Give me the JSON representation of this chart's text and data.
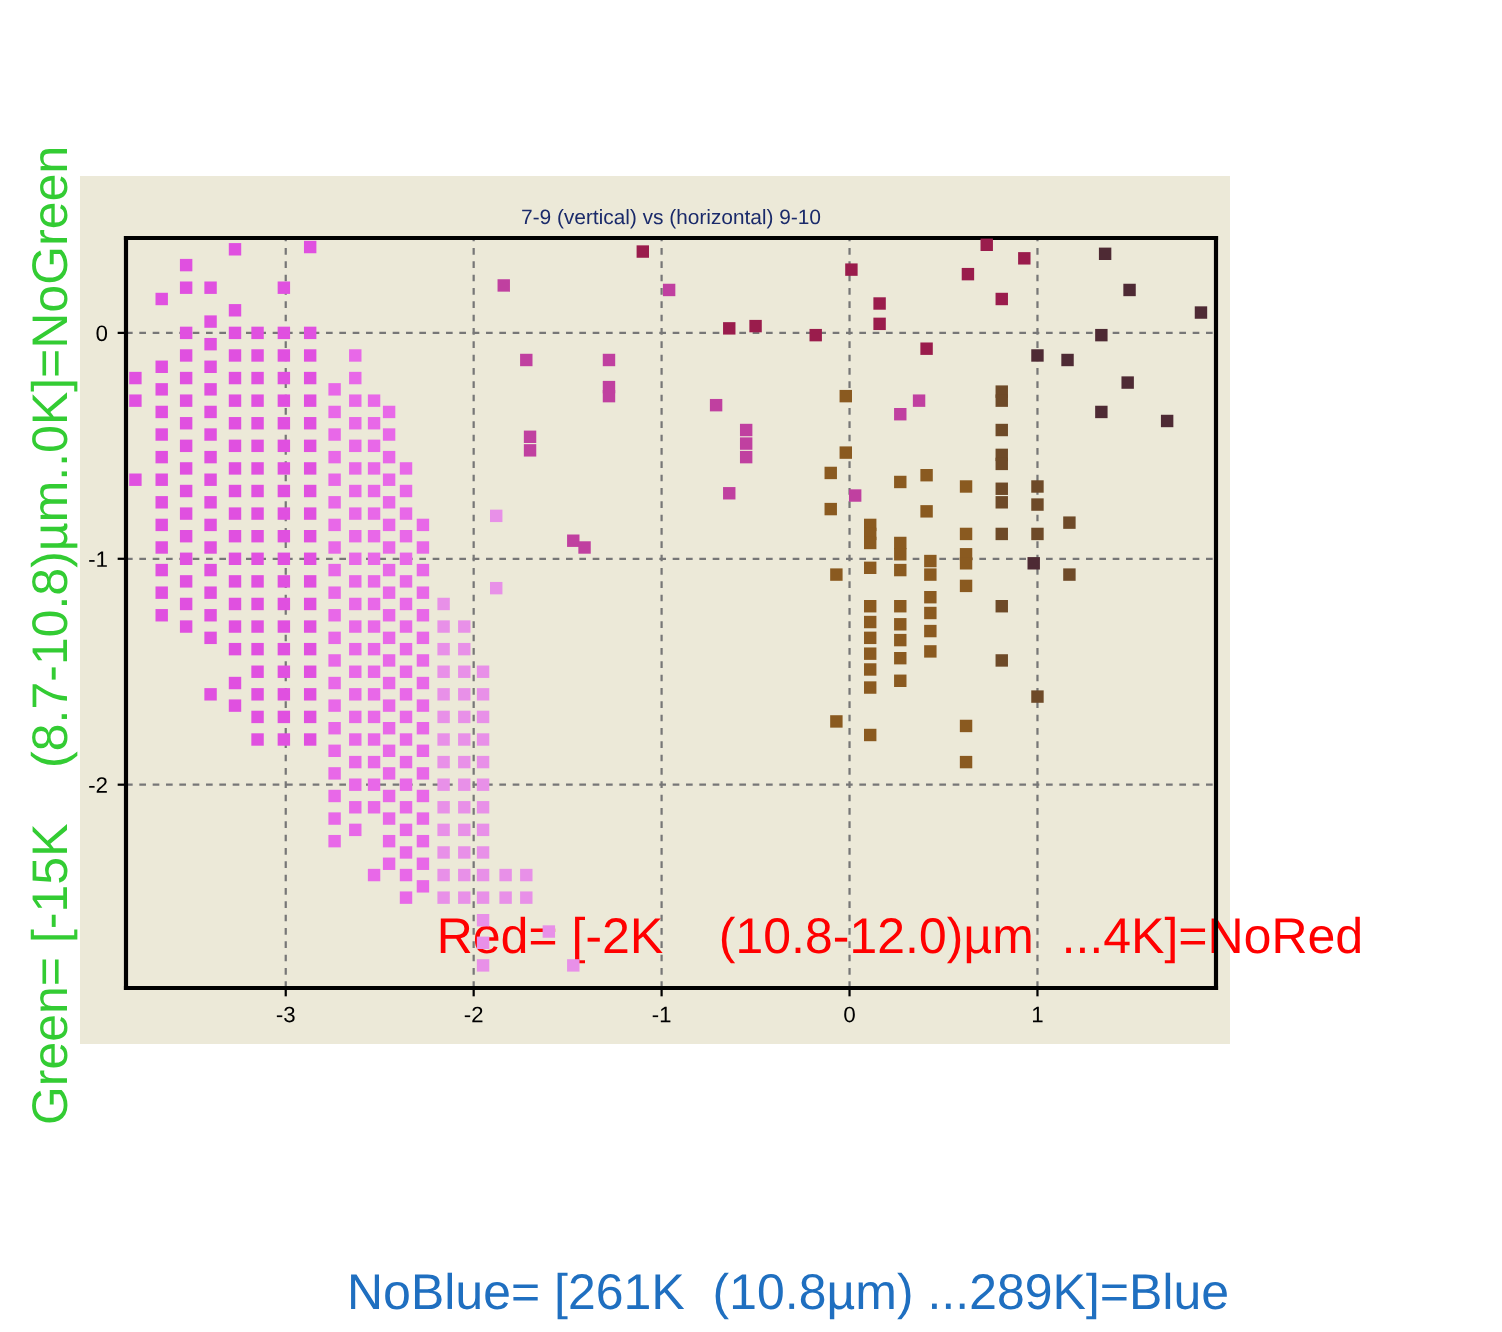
{
  "chart_data": {
    "type": "scatter",
    "title": "7-9 (vertical) vs (horizontal) 9-10",
    "xlabel": "Red= [-2K    (10.8-12.0)µm  ...4K]=NoRed",
    "ylabel": "Green= [-15K    (8.7-10.8)µm..0K]=NoGreen",
    "annotations": [
      "NoBlue= [261K  (10.8µm) ...289K]=Blue"
    ],
    "xlim": [
      -3.85,
      1.95
    ],
    "ylim": [
      -2.9,
      0.42
    ],
    "xticks": [
      -3,
      -2,
      -1,
      0,
      1
    ],
    "yticks": [
      -2,
      -1,
      0
    ],
    "grid": true,
    "marker": "square",
    "series": [
      {
        "color": "#e050e0",
        "x": [
          -3.8,
          -3.8,
          -3.8
        ],
        "values": [
          -0.2,
          -0.3,
          -0.65
        ]
      },
      {
        "color": "#e050e0",
        "x": [
          -3.66,
          -3.66,
          -3.66,
          -3.66,
          -3.66,
          -3.66,
          -3.66,
          -3.66,
          -3.66,
          -3.66,
          -3.66,
          -3.66,
          -3.66
        ],
        "values": [
          0.15,
          -0.15,
          -0.25,
          -0.35,
          -0.45,
          -0.55,
          -0.65,
          -0.75,
          -0.85,
          -0.95,
          -1.05,
          -1.15,
          -1.25
        ]
      },
      {
        "color": "#e050e0",
        "x": [
          -3.53,
          -3.53,
          -3.53,
          -3.53,
          -3.53,
          -3.53,
          -3.53,
          -3.53,
          -3.53,
          -3.53,
          -3.53,
          -3.53,
          -3.53,
          -3.53,
          -3.53,
          -3.53
        ],
        "values": [
          0.3,
          0.2,
          0.0,
          -0.1,
          -0.2,
          -0.3,
          -0.4,
          -0.5,
          -0.6,
          -0.7,
          -0.8,
          -0.9,
          -1.0,
          -1.1,
          -1.2,
          -1.3
        ]
      },
      {
        "color": "#e050e0",
        "x": [
          -3.4,
          -3.4,
          -3.4,
          -3.4,
          -3.4,
          -3.4,
          -3.4,
          -3.4,
          -3.4,
          -3.4,
          -3.4,
          -3.4,
          -3.4,
          -3.4,
          -3.4,
          -3.4,
          -3.4
        ],
        "values": [
          0.2,
          0.05,
          -0.05,
          -0.15,
          -0.25,
          -0.35,
          -0.45,
          -0.55,
          -0.65,
          -0.75,
          -0.85,
          -0.95,
          -1.05,
          -1.15,
          -1.25,
          -1.35,
          -1.6
        ]
      },
      {
        "color": "#e050e0",
        "x": [
          -3.27,
          -3.27,
          -3.27,
          -3.27,
          -3.27,
          -3.27,
          -3.27,
          -3.27,
          -3.27,
          -3.27,
          -3.27,
          -3.27,
          -3.27,
          -3.27,
          -3.27,
          -3.27,
          -3.27,
          -3.27,
          -3.27
        ],
        "values": [
          0.37,
          0.1,
          0.0,
          -0.1,
          -0.2,
          -0.3,
          -0.4,
          -0.5,
          -0.6,
          -0.7,
          -0.8,
          -0.9,
          -1.0,
          -1.1,
          -1.2,
          -1.3,
          -1.4,
          -1.55,
          -1.65
        ]
      },
      {
        "color": "#e050e0",
        "x": [
          -3.15,
          -3.15,
          -3.15,
          -3.15,
          -3.15,
          -3.15,
          -3.15,
          -3.15,
          -3.15,
          -3.15,
          -3.15,
          -3.15,
          -3.15,
          -3.15,
          -3.15,
          -3.15,
          -3.15,
          -3.15,
          -3.15
        ],
        "values": [
          0.0,
          -0.1,
          -0.2,
          -0.3,
          -0.4,
          -0.5,
          -0.6,
          -0.7,
          -0.8,
          -0.9,
          -1.0,
          -1.1,
          -1.2,
          -1.3,
          -1.4,
          -1.5,
          -1.6,
          -1.7,
          -1.8
        ]
      },
      {
        "color": "#e050e0",
        "x": [
          -3.01,
          -3.01,
          -3.01,
          -3.01,
          -3.01,
          -3.01,
          -3.01,
          -3.01,
          -3.01,
          -3.01,
          -3.01,
          -3.01,
          -3.01,
          -3.01,
          -3.01,
          -3.01,
          -3.01,
          -3.01,
          -3.01,
          -3.01
        ],
        "values": [
          0.2,
          0.0,
          -0.1,
          -0.2,
          -0.3,
          -0.4,
          -0.5,
          -0.6,
          -0.7,
          -0.8,
          -0.9,
          -1.0,
          -1.1,
          -1.2,
          -1.3,
          -1.4,
          -1.5,
          -1.6,
          -1.7,
          -1.8
        ]
      },
      {
        "color": "#e050e0",
        "x": [
          -2.87,
          -2.87,
          -2.87,
          -2.87,
          -2.87,
          -2.87,
          -2.87,
          -2.87,
          -2.87,
          -2.87,
          -2.87,
          -2.87,
          -2.87,
          -2.87,
          -2.87,
          -2.87,
          -2.87,
          -2.87,
          -2.87,
          -2.87
        ],
        "values": [
          0.38,
          0.0,
          -0.1,
          -0.2,
          -0.3,
          -0.4,
          -0.5,
          -0.6,
          -0.7,
          -0.8,
          -0.9,
          -1.0,
          -1.1,
          -1.2,
          -1.3,
          -1.4,
          -1.5,
          -1.6,
          -1.7,
          -1.8
        ]
      },
      {
        "color": "#e868e8",
        "x": [
          -2.74,
          -2.74,
          -2.74,
          -2.74,
          -2.74,
          -2.74,
          -2.74,
          -2.74,
          -2.74,
          -2.74,
          -2.74,
          -2.74,
          -2.74,
          -2.74,
          -2.74,
          -2.74,
          -2.74,
          -2.74,
          -2.74,
          -2.74,
          -2.74
        ],
        "values": [
          -0.25,
          -0.35,
          -0.45,
          -0.55,
          -0.65,
          -0.75,
          -0.85,
          -0.95,
          -1.05,
          -1.15,
          -1.25,
          -1.35,
          -1.45,
          -1.55,
          -1.65,
          -1.75,
          -1.85,
          -1.95,
          -2.05,
          -2.15,
          -2.25
        ]
      },
      {
        "color": "#e868e8",
        "x": [
          -2.63,
          -2.63,
          -2.63,
          -2.63,
          -2.63,
          -2.63,
          -2.63,
          -2.63,
          -2.63,
          -2.63,
          -2.63,
          -2.63,
          -2.63,
          -2.63,
          -2.63,
          -2.63,
          -2.63,
          -2.63,
          -2.63,
          -2.63,
          -2.63,
          -2.63
        ],
        "values": [
          -0.1,
          -0.2,
          -0.3,
          -0.4,
          -0.5,
          -0.6,
          -0.7,
          -0.8,
          -0.9,
          -1.0,
          -1.1,
          -1.2,
          -1.3,
          -1.4,
          -1.5,
          -1.6,
          -1.7,
          -1.8,
          -1.9,
          -2.0,
          -2.1,
          -2.2
        ]
      },
      {
        "color": "#e868e8",
        "x": [
          -2.53,
          -2.53,
          -2.53,
          -2.53,
          -2.53,
          -2.53,
          -2.53,
          -2.53,
          -2.53,
          -2.53,
          -2.53,
          -2.53,
          -2.53,
          -2.53,
          -2.53,
          -2.53,
          -2.53,
          -2.53,
          -2.53,
          -2.53
        ],
        "values": [
          -0.3,
          -0.4,
          -0.5,
          -0.6,
          -0.7,
          -0.8,
          -0.9,
          -1.0,
          -1.1,
          -1.2,
          -1.3,
          -1.4,
          -1.5,
          -1.6,
          -1.7,
          -1.8,
          -1.9,
          -2.0,
          -2.1,
          -2.4
        ]
      },
      {
        "color": "#e868e8",
        "x": [
          -2.45,
          -2.45,
          -2.45,
          -2.45,
          -2.45,
          -2.45,
          -2.45,
          -2.45,
          -2.45,
          -2.45,
          -2.45,
          -2.45,
          -2.45,
          -2.45,
          -2.45,
          -2.45,
          -2.45,
          -2.45,
          -2.45,
          -2.45,
          -2.45
        ],
        "values": [
          -0.35,
          -0.45,
          -0.55,
          -0.65,
          -0.75,
          -0.85,
          -0.95,
          -1.05,
          -1.15,
          -1.25,
          -1.35,
          -1.45,
          -1.55,
          -1.65,
          -1.75,
          -1.85,
          -1.95,
          -2.05,
          -2.15,
          -2.25,
          -2.35
        ]
      },
      {
        "color": "#e868e8",
        "x": [
          -2.36,
          -2.36,
          -2.36,
          -2.36,
          -2.36,
          -2.36,
          -2.36,
          -2.36,
          -2.36,
          -2.36,
          -2.36,
          -2.36,
          -2.36,
          -2.36,
          -2.36,
          -2.36,
          -2.36,
          -2.36,
          -2.36,
          -2.36
        ],
        "values": [
          -0.6,
          -0.7,
          -0.8,
          -0.9,
          -1.0,
          -1.1,
          -1.2,
          -1.3,
          -1.4,
          -1.5,
          -1.6,
          -1.7,
          -1.8,
          -1.9,
          -2.0,
          -2.1,
          -2.2,
          -2.3,
          -2.4,
          -2.5
        ]
      },
      {
        "color": "#e868e8",
        "x": [
          -2.27,
          -2.27,
          -2.27,
          -2.27,
          -2.27,
          -2.27,
          -2.27,
          -2.27,
          -2.27,
          -2.27,
          -2.27,
          -2.27,
          -2.27,
          -2.27,
          -2.27,
          -2.27,
          -2.27
        ],
        "values": [
          -0.85,
          -0.95,
          -1.05,
          -1.15,
          -1.25,
          -1.35,
          -1.45,
          -1.55,
          -1.65,
          -1.75,
          -1.85,
          -1.95,
          -2.05,
          -2.15,
          -2.25,
          -2.35,
          -2.45
        ]
      },
      {
        "color": "#e890e8",
        "x": [
          -2.16,
          -2.16,
          -2.16,
          -2.16,
          -2.16,
          -2.16,
          -2.16,
          -2.16,
          -2.16,
          -2.16,
          -2.16,
          -2.16,
          -2.16,
          -2.16
        ],
        "values": [
          -1.2,
          -1.3,
          -1.4,
          -1.5,
          -1.6,
          -1.7,
          -1.8,
          -1.9,
          -2.0,
          -2.1,
          -2.2,
          -2.3,
          -2.4,
          -2.5
        ]
      },
      {
        "color": "#e890e8",
        "x": [
          -2.05,
          -2.05,
          -2.05,
          -2.05,
          -2.05,
          -2.05,
          -2.05,
          -2.05,
          -2.05,
          -2.05,
          -2.05,
          -2.05,
          -2.05
        ],
        "values": [
          -1.3,
          -1.4,
          -1.5,
          -1.6,
          -1.7,
          -1.8,
          -1.9,
          -2.0,
          -2.1,
          -2.2,
          -2.3,
          -2.4,
          -2.5
        ]
      },
      {
        "color": "#e890e8",
        "x": [
          -1.95,
          -1.95,
          -1.95,
          -1.95,
          -1.95,
          -1.95,
          -1.95,
          -1.95,
          -1.95,
          -1.95,
          -1.95,
          -1.95,
          -1.95,
          -1.95
        ],
        "values": [
          -1.5,
          -1.6,
          -1.7,
          -1.8,
          -1.9,
          -2.0,
          -2.1,
          -2.2,
          -2.3,
          -2.4,
          -2.5,
          -2.6,
          -2.7,
          -2.8
        ]
      },
      {
        "color": "#e890e8",
        "x": [
          -1.83,
          -1.83,
          -1.72,
          -1.72,
          -1.6,
          -1.47,
          -1.88,
          -1.88
        ],
        "values": [
          -2.4,
          -2.5,
          -2.4,
          -2.5,
          -2.65,
          -2.8,
          -0.81,
          -1.13
        ]
      },
      {
        "color": "#c040a0",
        "x": [
          -1.84,
          -1.72,
          -1.7,
          -1.7,
          -1.47,
          -1.41,
          -1.28,
          -1.28,
          -1.28,
          -0.96,
          -0.71,
          -0.55,
          -0.55,
          -0.55,
          -0.64,
          0.37,
          0.27,
          0.03
        ],
        "values": [
          0.21,
          -0.12,
          -0.46,
          -0.52,
          -0.92,
          -0.95,
          -0.12,
          -0.24,
          -0.28,
          0.19,
          -0.32,
          -0.43,
          -0.49,
          -0.55,
          -0.71,
          -0.3,
          -0.36,
          -0.72
        ]
      },
      {
        "color": "#9a1c4c",
        "x": [
          -1.1,
          -0.64,
          -0.5,
          -0.18,
          0.01,
          0.16,
          0.16,
          0.41,
          0.73,
          0.63,
          0.81,
          0.93
        ],
        "values": [
          0.36,
          0.02,
          0.03,
          -0.01,
          0.28,
          0.13,
          0.04,
          -0.07,
          0.39,
          0.26,
          0.15,
          0.33
        ]
      },
      {
        "color": "#8a5a20",
        "x": [
          -0.02,
          -0.02,
          -0.1,
          -0.1,
          -0.07,
          -0.07,
          0.11,
          0.11,
          0.11,
          0.11,
          0.11,
          0.11,
          0.11,
          0.11,
          0.11,
          0.11,
          0.11,
          0.27,
          0.27,
          0.27,
          0.27,
          0.27,
          0.27,
          0.27,
          0.27,
          0.27,
          0.41,
          0.41,
          0.43,
          0.43,
          0.43,
          0.43,
          0.43,
          0.43,
          0.62,
          0.62,
          0.62,
          0.62,
          0.62,
          0.62,
          0.62
        ],
        "values": [
          -0.28,
          -0.53,
          -0.62,
          -0.78,
          -1.07,
          -1.72,
          -0.85,
          -0.89,
          -0.93,
          -1.04,
          -1.21,
          -1.28,
          -1.35,
          -1.42,
          -1.49,
          -1.57,
          -1.78,
          -0.66,
          -0.93,
          -0.98,
          -1.05,
          -1.21,
          -1.29,
          -1.36,
          -1.44,
          -1.54,
          -0.63,
          -0.79,
          -1.01,
          -1.07,
          -1.17,
          -1.24,
          -1.32,
          -1.41,
          -0.68,
          -0.89,
          -0.98,
          -1.02,
          -1.12,
          -1.74,
          -1.9
        ]
      },
      {
        "color": "#6e4a28",
        "x": [
          0.81,
          0.81,
          0.81,
          0.81,
          0.81,
          0.81,
          0.81,
          0.81,
          0.81,
          0.81,
          1.0,
          1.0,
          1.0,
          1.0,
          1.17,
          1.17
        ],
        "values": [
          -0.26,
          -0.3,
          -0.43,
          -0.54,
          -0.58,
          -0.69,
          -0.75,
          -0.89,
          -1.21,
          -1.45,
          -0.68,
          -0.76,
          -0.89,
          -1.61,
          -0.84,
          -1.07
        ]
      },
      {
        "color": "#4e2a34",
        "x": [
          1.36,
          1.49,
          1.87,
          1.34,
          1.0,
          1.16,
          1.48,
          1.34,
          1.69,
          0.98
        ],
        "values": [
          0.35,
          0.19,
          0.09,
          -0.01,
          -0.1,
          -0.12,
          -0.22,
          -0.35,
          -0.39,
          -1.02
        ]
      }
    ]
  }
}
